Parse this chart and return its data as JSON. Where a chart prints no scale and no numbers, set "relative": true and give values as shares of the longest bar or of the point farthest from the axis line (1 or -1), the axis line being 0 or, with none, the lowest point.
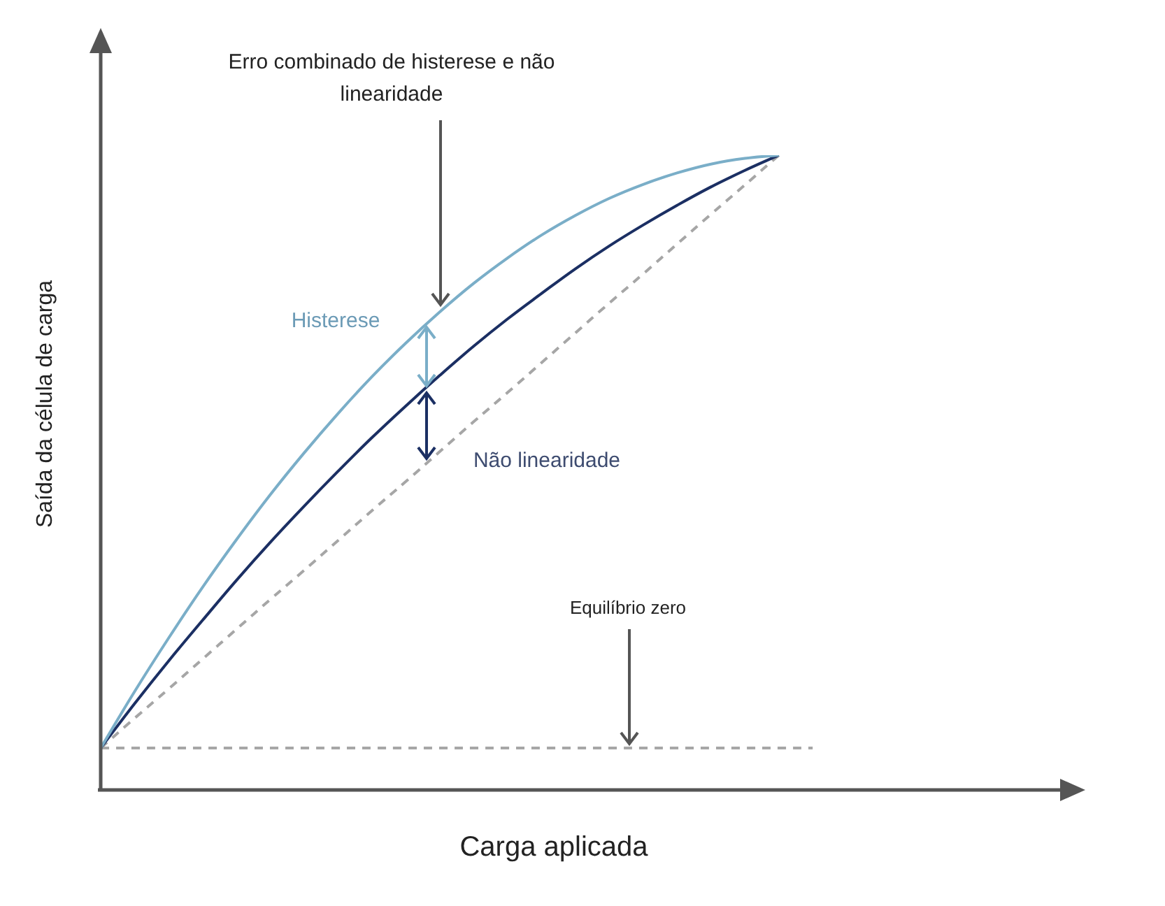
{
  "chart_data": {
    "type": "line",
    "relative": true,
    "xlabel": "Carga aplicada",
    "ylabel": "Saída da célula de carga",
    "categories": [
      null,
      null,
      null,
      null,
      null,
      null,
      null,
      null,
      null,
      null,
      null,
      null,
      null,
      null,
      null,
      null,
      null,
      null,
      null,
      null,
      null,
      null,
      null,
      null,
      null,
      null,
      null,
      null,
      null,
      null
    ],
    "series": [
      {
        "color": "#7aaec8",
        "line_style": "solid",
        "values": [
          0.066,
          0.155,
          0.239,
          0.319,
          0.394,
          0.465,
          0.531,
          0.593,
          0.651,
          0.704,
          0.753,
          0.798,
          0.838,
          0.874,
          0.905,
          0.932,
          0.954,
          0.972,
          0.986,
          0.995,
          1,
          null,
          null,
          null,
          null,
          null,
          null,
          null,
          null,
          null
        ]
      },
      {
        "color": "#1b2f63",
        "line_style": "solid",
        "values": [
          0.066,
          0.136,
          0.203,
          0.267,
          0.33,
          0.39,
          0.447,
          0.502,
          0.555,
          0.605,
          0.653,
          0.699,
          0.742,
          0.782,
          0.821,
          0.857,
          0.89,
          0.921,
          0.95,
          0.976,
          1,
          null,
          null,
          null,
          null,
          null,
          null,
          null,
          null,
          null
        ]
      },
      {
        "color": "#a6a6a6",
        "line_style": "dashed",
        "values": [
          0.066,
          0.113,
          0.159,
          0.206,
          0.253,
          0.3,
          0.346,
          0.393,
          0.44,
          0.486,
          0.533,
          0.58,
          0.626,
          0.673,
          0.72,
          0.767,
          0.813,
          0.86,
          0.907,
          0.953,
          1,
          null,
          null,
          null,
          null,
          null,
          null,
          null,
          null,
          null
        ]
      },
      {
        "color": "#a6a6a6",
        "line_style": "dashed",
        "values": [
          0.066,
          0.066,
          0.066,
          0.066,
          0.066,
          0.066,
          0.066,
          0.066,
          0.066,
          0.066,
          0.066,
          0.066,
          0.066,
          0.066,
          0.066,
          0.066,
          0.066,
          0.066,
          0.066,
          0.066,
          0.066,
          0.066,
          null,
          null,
          null,
          null,
          null,
          null,
          null,
          null
        ]
      }
    ],
    "annotations": [
      "Erro combinado de histerese e não linearidade",
      "Histerese",
      "Não linearidade",
      "Equilíbrio zero"
    ]
  }
}
